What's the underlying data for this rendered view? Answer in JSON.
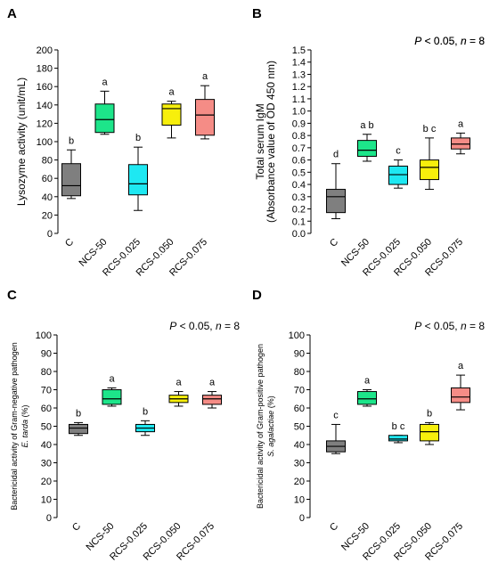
{
  "colors": {
    "C": "#7f7f7f",
    "NCS-50": "#1de58a",
    "RCS-0.025": "#1ee8f2",
    "RCS-0.050": "#f7ef0c",
    "RCS-0.075": "#f58c86"
  },
  "chart_data": [
    {
      "type": "box",
      "panel_label": "A",
      "stats": {
        "prefix": "P",
        "cond": " < 0.05, ",
        "n_label": "n",
        "n_value": " = 8"
      },
      "ylabel": [
        "Lysozyme activity (unit/mL)"
      ],
      "ylim": [
        0,
        200
      ],
      "yticks": [
        0,
        20,
        40,
        60,
        80,
        100,
        120,
        140,
        160,
        180,
        200
      ],
      "tick_labels": [
        "0",
        "20",
        "40",
        "60",
        "80",
        "100",
        "120",
        "140",
        "160",
        "180",
        "200"
      ],
      "categories": [
        "C",
        "NCS-50",
        "RCS-0.025",
        "RCS-0.050",
        "RCS-0.075"
      ],
      "boxes": [
        {
          "min": 38,
          "q1": 41,
          "median": 52,
          "q3": 76,
          "max": 91,
          "letter": "b"
        },
        {
          "min": 108,
          "q1": 110,
          "median": 124,
          "q3": 141,
          "max": 155,
          "letter": "a"
        },
        {
          "min": 25,
          "q1": 42,
          "median": 54,
          "q3": 75,
          "max": 94,
          "letter": "b"
        },
        {
          "min": 104,
          "q1": 118,
          "median": 136,
          "q3": 141,
          "max": 144,
          "letter": "a"
        },
        {
          "min": 103,
          "q1": 107,
          "median": 129,
          "q3": 146,
          "max": 161,
          "letter": "a"
        }
      ]
    },
    {
      "type": "box",
      "panel_label": "B",
      "stats": {
        "prefix": "P",
        "cond": " < 0.05, ",
        "n_label": "n",
        "n_value": " = 8"
      },
      "ylabel": [
        "Total serum IgM",
        "(Absorbance value of OD 450 nm)"
      ],
      "ylim": [
        0,
        1.5
      ],
      "yticks": [
        0,
        0.1,
        0.2,
        0.3,
        0.4,
        0.5,
        0.6,
        0.7,
        0.8,
        0.9,
        1.0,
        1.1,
        1.2,
        1.3,
        1.4,
        1.5
      ],
      "tick_labels": [
        "0.0",
        "0.1",
        "0.2",
        "0.3",
        "0.4",
        "0.5",
        "0.6",
        "0.7",
        "0.8",
        "0.9",
        "1.0",
        "1.1",
        "1.2",
        "1.3",
        "1.4",
        "1.5"
      ],
      "categories": [
        "C",
        "NCS-50",
        "RCS-0.025",
        "RCS-0.050",
        "RCS-0.075"
      ],
      "boxes": [
        {
          "min": 0.12,
          "q1": 0.17,
          "median": 0.3,
          "q3": 0.36,
          "max": 0.57,
          "letter": "d"
        },
        {
          "min": 0.59,
          "q1": 0.63,
          "median": 0.68,
          "q3": 0.76,
          "max": 0.81,
          "letter": "a b"
        },
        {
          "min": 0.37,
          "q1": 0.4,
          "median": 0.48,
          "q3": 0.55,
          "max": 0.6,
          "letter": "c"
        },
        {
          "min": 0.36,
          "q1": 0.44,
          "median": 0.54,
          "q3": 0.6,
          "max": 0.78,
          "letter": "b c"
        },
        {
          "min": 0.65,
          "q1": 0.69,
          "median": 0.73,
          "q3": 0.78,
          "max": 0.82,
          "letter": "a"
        }
      ]
    },
    {
      "type": "box",
      "panel_label": "C",
      "stats": {
        "prefix": "P",
        "cond": " < 0.05, ",
        "n_label": "n",
        "n_value": " = 8"
      },
      "ylabel": [
        "Bactericidal activity of Gram-negative pathogen",
        "E. tarda|(%)"
      ],
      "ylim": [
        0,
        100
      ],
      "yticks": [
        0,
        10,
        20,
        30,
        40,
        50,
        60,
        70,
        80,
        90,
        100
      ],
      "tick_labels": [
        "0",
        "10",
        "20",
        "30",
        "40",
        "50",
        "60",
        "70",
        "80",
        "90",
        "100"
      ],
      "categories": [
        "C",
        "NCS-50",
        "RCS-0.025",
        "RCS-0.050",
        "RCS-0.075"
      ],
      "boxes": [
        {
          "min": 45,
          "q1": 46,
          "median": 49,
          "q3": 51,
          "max": 52,
          "letter": "b"
        },
        {
          "min": 61,
          "q1": 62,
          "median": 65,
          "q3": 70,
          "max": 71,
          "letter": "a"
        },
        {
          "min": 45,
          "q1": 47,
          "median": 49,
          "q3": 51,
          "max": 53,
          "letter": "b"
        },
        {
          "min": 61,
          "q1": 63,
          "median": 65,
          "q3": 67,
          "max": 69,
          "letter": "a"
        },
        {
          "min": 60,
          "q1": 62,
          "median": 65,
          "q3": 67,
          "max": 69,
          "letter": "a"
        }
      ]
    },
    {
      "type": "box",
      "panel_label": "D",
      "stats": {
        "prefix": "P",
        "cond": " < 0.05, ",
        "n_label": "n",
        "n_value": " = 8"
      },
      "ylabel": [
        "Bactericidal activity of Gram-positive pathogen",
        "S. agalactiae|(%)"
      ],
      "ylim": [
        0,
        100
      ],
      "yticks": [
        0,
        10,
        20,
        30,
        40,
        50,
        60,
        70,
        80,
        90,
        100
      ],
      "tick_labels": [
        "0",
        "10",
        "20",
        "30",
        "40",
        "50",
        "60",
        "70",
        "80",
        "90",
        "100"
      ],
      "categories": [
        "C",
        "NCS-50",
        "RCS-0.025",
        "RCS-0.050",
        "RCS-0.075"
      ],
      "boxes": [
        {
          "min": 35,
          "q1": 36,
          "median": 39,
          "q3": 42,
          "max": 51,
          "letter": "c"
        },
        {
          "min": 61,
          "q1": 62,
          "median": 65,
          "q3": 69,
          "max": 70,
          "letter": "a"
        },
        {
          "min": 41,
          "q1": 42,
          "median": 43,
          "q3": 45,
          "max": 45,
          "letter": "b c"
        },
        {
          "min": 40,
          "q1": 42,
          "median": 47,
          "q3": 51,
          "max": 52,
          "letter": "b"
        },
        {
          "min": 59,
          "q1": 63,
          "median": 66,
          "q3": 71,
          "max": 78,
          "letter": "a"
        }
      ]
    }
  ]
}
